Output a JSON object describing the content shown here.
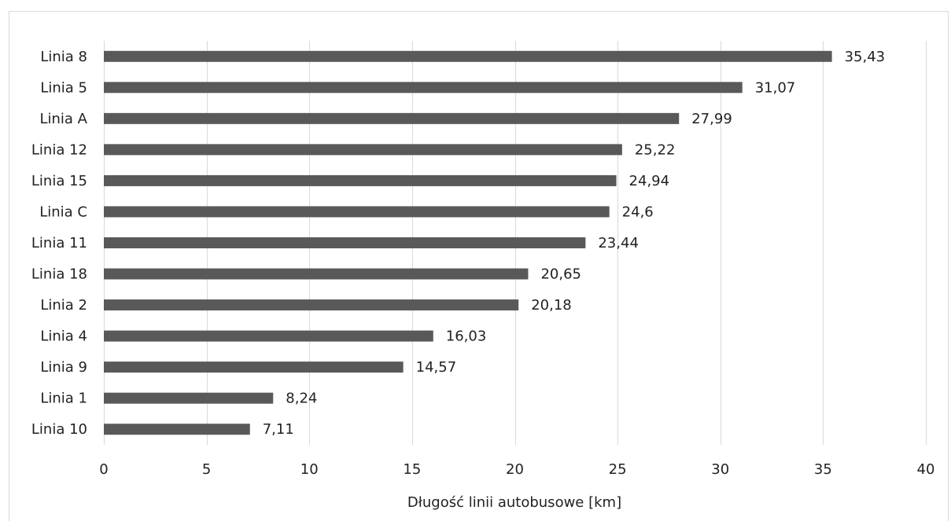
{
  "chart_data": {
    "type": "bar",
    "orientation": "horizontal",
    "categories": [
      "Linia 8",
      "Linia 5",
      "Linia A",
      "Linia 12",
      "Linia 15",
      "Linia C",
      "Linia 11",
      "Linia 18",
      "Linia 2",
      "Linia 4",
      "Linia 9",
      "Linia 1",
      "Linia 10"
    ],
    "values": [
      35.43,
      31.07,
      27.99,
      25.22,
      24.94,
      24.6,
      23.44,
      20.65,
      20.18,
      16.03,
      14.57,
      8.24,
      7.11
    ],
    "value_labels": [
      "35,43",
      "31,07",
      "27,99",
      "25,22",
      "24,94",
      "24,6",
      "23,44",
      "20,65",
      "20,18",
      "16,03",
      "14,57",
      "8,24",
      "7,11"
    ],
    "title": "",
    "xlabel": "Długość linii autobusowe [km]",
    "ylabel": "",
    "xlim": [
      0,
      40
    ],
    "xticks": [
      "0",
      "5",
      "10",
      "15",
      "20",
      "25",
      "30",
      "35",
      "40"
    ],
    "grid": "vertical",
    "legend": "none",
    "bar_color": "#595959",
    "grid_color": "#d9d9d9"
  }
}
